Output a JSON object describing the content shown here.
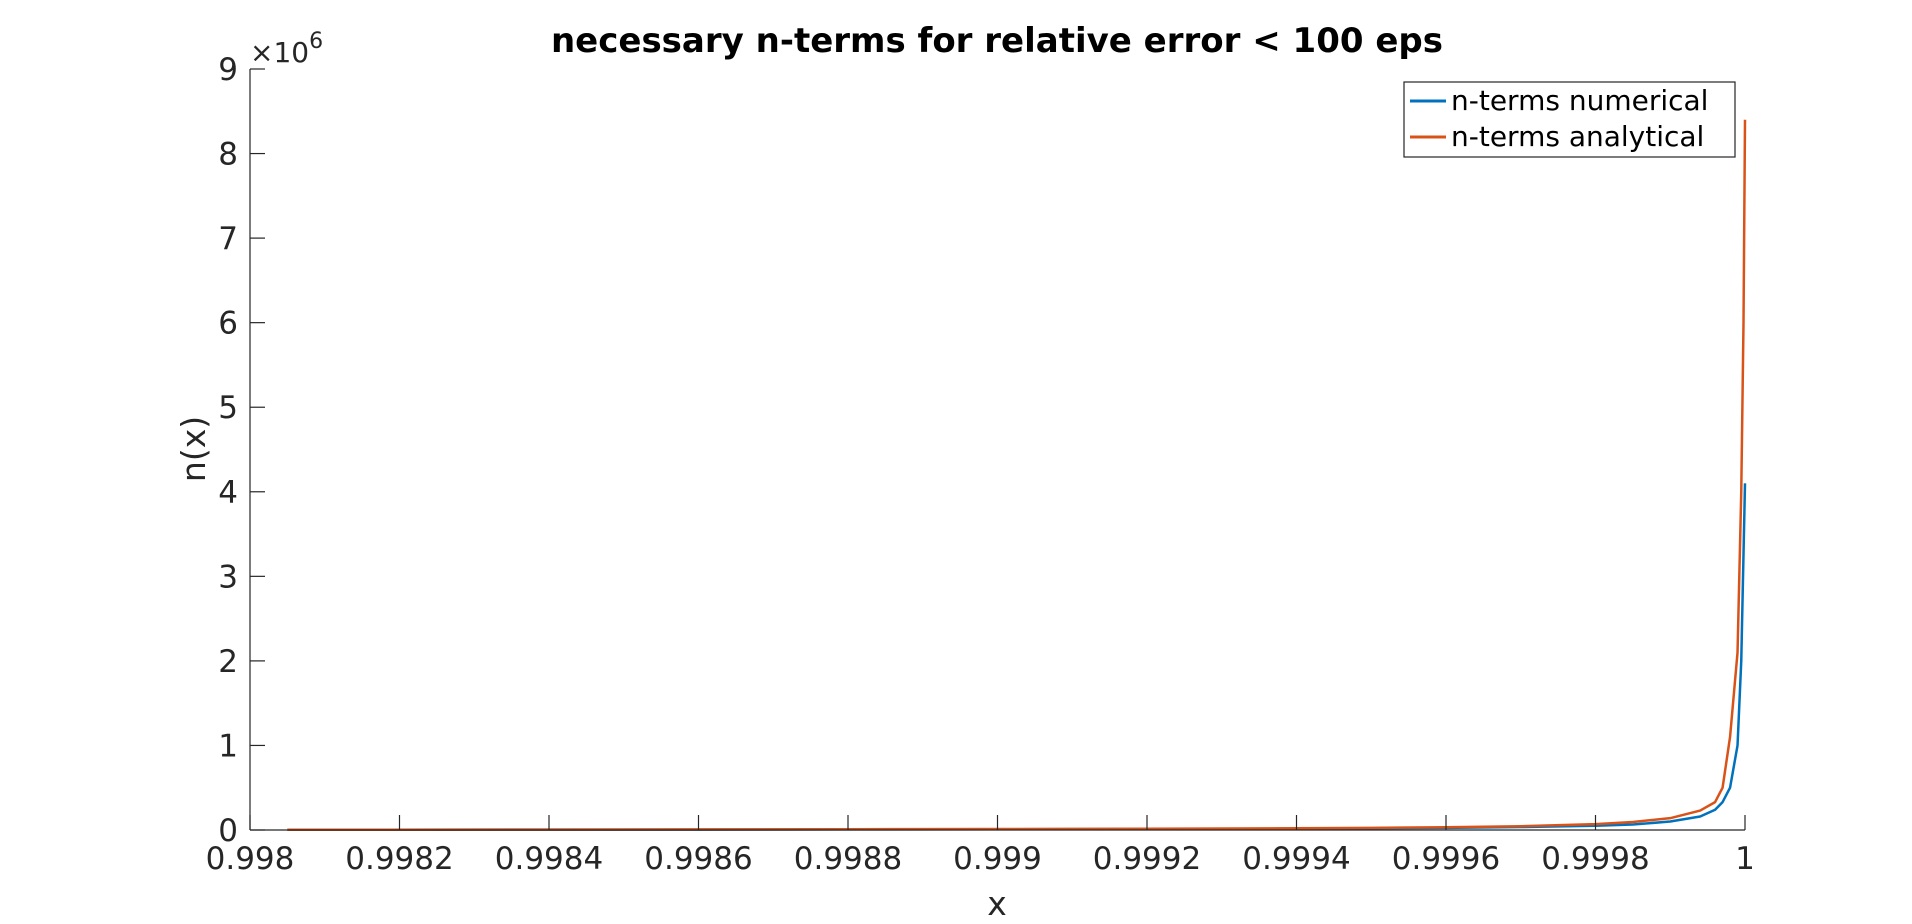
{
  "chart_data": {
    "type": "line",
    "title": "necessary n-terms for relative error < 100 eps",
    "xlabel": "x",
    "ylabel": "n(x)",
    "xlim": [
      0.998,
      1
    ],
    "ylim": [
      0,
      9000000
    ],
    "xticks": [
      0.998,
      0.9982,
      0.9984,
      0.9986,
      0.9988,
      0.999,
      0.9992,
      0.9994,
      0.9996,
      0.9998,
      1
    ],
    "xtick_labels": [
      "0.998",
      "0.9982",
      "0.9984",
      "0.9986",
      "0.9988",
      "0.999",
      "0.9992",
      "0.9994",
      "0.9996",
      "0.9998",
      "1"
    ],
    "yticks": [
      0,
      1000000,
      2000000,
      3000000,
      4000000,
      5000000,
      6000000,
      7000000,
      8000000,
      9000000
    ],
    "ytick_labels": [
      "0",
      "1",
      "2",
      "3",
      "4",
      "5",
      "6",
      "7",
      "8",
      "9"
    ],
    "y_exponent": {
      "base": "10",
      "power": "6"
    },
    "grid": false,
    "legend_position": "top-right",
    "series": [
      {
        "name": "n-terms numerical",
        "color": "#0072BD",
        "x": [
          0.99805,
          0.9984,
          0.9986,
          0.9988,
          0.999,
          0.9992,
          0.9994,
          0.9995,
          0.9996,
          0.9997,
          0.9998,
          0.99985,
          0.9999,
          0.99994,
          0.99996,
          0.99997,
          0.99998,
          0.99999,
          0.999995,
          1.0
        ],
        "y": [
          3000,
          4000,
          5000,
          7000,
          9000,
          12000,
          16000,
          20000,
          25000,
          35000,
          50000,
          65000,
          100000,
          160000,
          240000,
          330000,
          500000,
          1000000,
          2000000,
          4100000
        ]
      },
      {
        "name": "n-terms analytical",
        "color": "#D95319",
        "x": [
          0.99805,
          0.9984,
          0.9986,
          0.9988,
          0.999,
          0.9992,
          0.9994,
          0.9995,
          0.9996,
          0.9997,
          0.9998,
          0.99985,
          0.9999,
          0.99994,
          0.99996,
          0.99997,
          0.99998,
          0.99999,
          0.999995,
          0.999998,
          1.0
        ],
        "y": [
          3000,
          5000,
          7000,
          9000,
          12000,
          15000,
          20000,
          25000,
          33000,
          45000,
          70000,
          95000,
          140000,
          230000,
          330000,
          500000,
          1100000,
          2100000,
          4000000,
          6000000,
          8400000
        ]
      }
    ]
  }
}
